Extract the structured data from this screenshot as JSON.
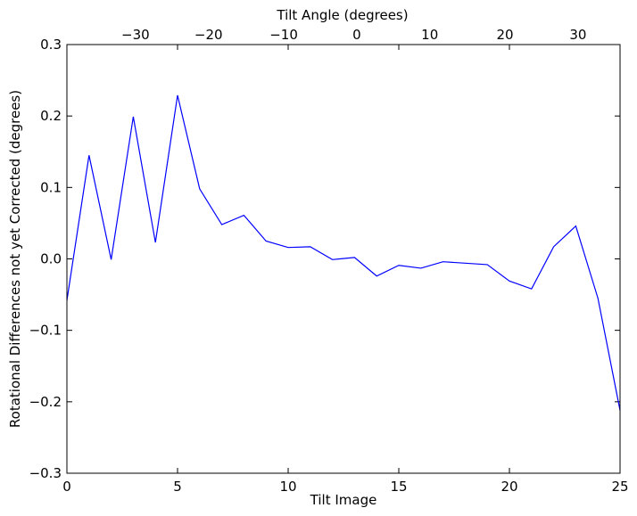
{
  "chart_data": {
    "type": "line",
    "title": "",
    "xlabel": "Tilt Image",
    "ylabel": "Rotational Differences not yet Corrected (degrees)",
    "x2label": "Tilt Angle (degrees)",
    "xlim": [
      0,
      25
    ],
    "ylim": [
      -0.3,
      0.3
    ],
    "grid": false,
    "legend": "none",
    "xticks": [
      0,
      5,
      10,
      15,
      20,
      25
    ],
    "xtick_labels": [
      "0",
      "5",
      "10",
      "15",
      "20",
      "25"
    ],
    "yticks": [
      -0.3,
      -0.2,
      -0.1,
      0.0,
      0.1,
      0.2,
      0.3
    ],
    "ytick_labels": [
      "−0.3",
      "−0.2",
      "−0.1",
      "0.0",
      "0.1",
      "0.2",
      "0.3"
    ],
    "x2ticks": [
      1.5,
      4.9,
      8.2,
      11.6,
      14.9,
      18.2,
      21.6,
      24.9
    ],
    "x2tick_labels": [
      "−30",
      "−20",
      "−10",
      "0",
      "10",
      "20",
      "30"
    ],
    "x2tick_values": [
      -30,
      -20,
      -10,
      0,
      10,
      20,
      30
    ],
    "x2tick_positions": [
      3.1,
      6.4,
      9.8,
      13.1,
      16.4,
      19.8,
      23.1
    ],
    "series": [
      {
        "color": "#0000ff",
        "x": [
          0,
          1,
          2,
          3,
          4,
          5,
          6,
          7,
          8,
          9,
          10,
          11,
          12,
          13,
          14,
          15,
          16,
          17,
          18,
          19,
          20,
          21,
          22,
          23,
          24,
          25
        ],
        "y": [
          -0.058,
          0.145,
          -0.001,
          0.199,
          0.023,
          0.229,
          0.098,
          0.048,
          0.061,
          0.025,
          0.016,
          0.017,
          -0.001,
          0.002,
          -0.024,
          -0.009,
          -0.013,
          -0.004,
          -0.006,
          -0.008,
          -0.031,
          -0.042,
          0.017,
          0.046,
          -0.055,
          -0.212
        ]
      }
    ]
  }
}
